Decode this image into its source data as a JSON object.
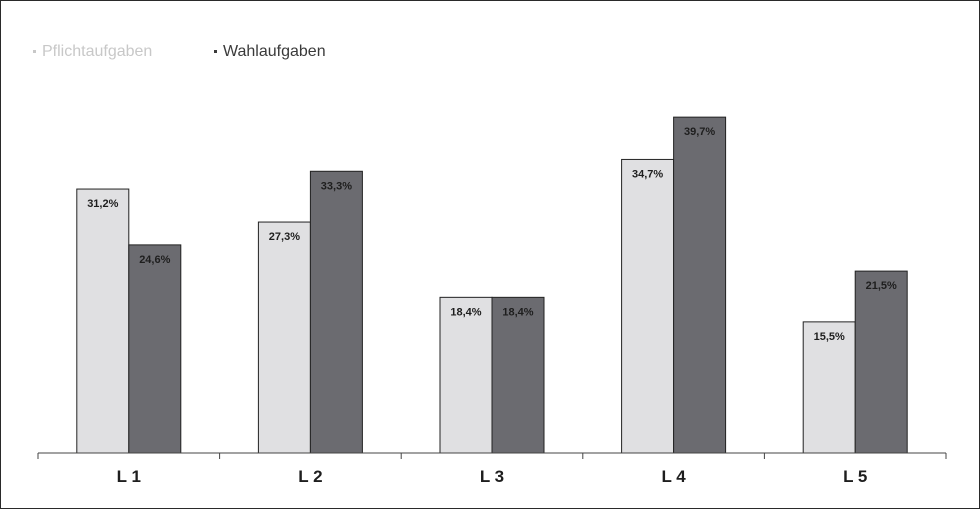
{
  "chart_data": {
    "type": "bar",
    "categories": [
      "L 1",
      "L 2",
      "L 3",
      "L 4",
      "L 5"
    ],
    "series": [
      {
        "name": "Pflichtaufgaben",
        "values": [
          31.2,
          27.3,
          18.4,
          34.7,
          15.5
        ],
        "labels": [
          "31,2%",
          "27,3%",
          "18,4%",
          "34,7%",
          "15,5%"
        ],
        "color": "#e0e0e2",
        "legend_color": "#c8c8c8"
      },
      {
        "name": "Wahlaufgaben",
        "values": [
          24.6,
          33.3,
          18.4,
          39.7,
          21.5
        ],
        "labels": [
          "24,6%",
          "33,3%",
          "18,4%",
          "39,7%",
          "21,5%"
        ],
        "color": "#6b6b70",
        "legend_color": "#3a3a3a"
      }
    ],
    "ylim": [
      0,
      40
    ],
    "legend_position": "top-left",
    "grid": false
  }
}
